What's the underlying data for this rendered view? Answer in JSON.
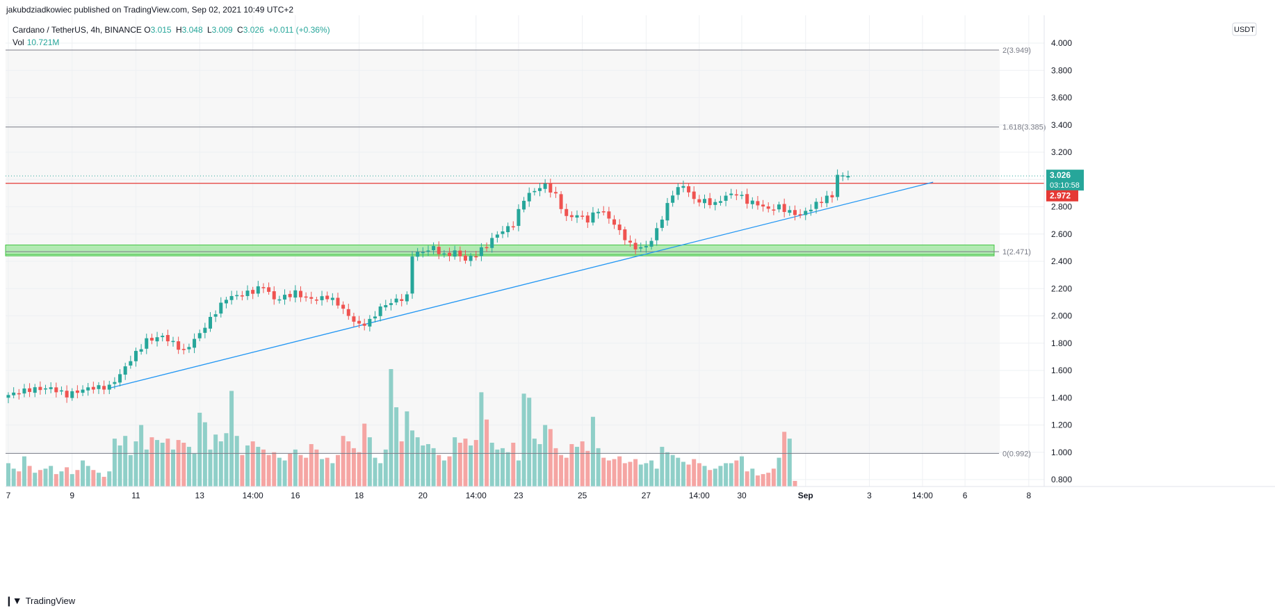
{
  "header": {
    "published": "jakubdziadkowiec published on TradingView.com, Sep 02, 2021 10:49 UTC+2"
  },
  "legend": {
    "symbol": "Cardano / TetherUS, 4h, BINANCE",
    "o_label": "O",
    "o_value": "3.015",
    "h_label": "H",
    "h_value": "3.048",
    "l_label": "L",
    "l_value": "3.009",
    "c_label": "C",
    "c_value": "3.026",
    "change": "+0.011 (+0.36%)",
    "vol_label": "Vol",
    "vol_value": "10.721M"
  },
  "currency_button": "USDT",
  "price_badge": {
    "price": "3.026",
    "timer": "03:10:58"
  },
  "line_badge": {
    "price": "2.972"
  },
  "footer": {
    "brand": "TradingView"
  },
  "colors": {
    "up": "#26a69a",
    "down": "#ef5350",
    "up_vol": "#8fcfc8",
    "down_vol": "#f5a5a3",
    "trendline": "#2196f3",
    "resistance": "#e53935",
    "zone_fill": "#9be69b",
    "zone_border": "#43c443"
  },
  "chart_data": {
    "type": "candlestick",
    "title": "Cardano / TetherUS, 4h, BINANCE",
    "ylim": [
      0.72,
      4.08
    ],
    "y_ticks": [
      "4.000",
      "3.800",
      "3.600",
      "3.400",
      "3.200",
      "3.000",
      "2.800",
      "2.600",
      "2.400",
      "2.200",
      "2.000",
      "1.800",
      "1.600",
      "1.400",
      "1.200",
      "1.000",
      "0.800"
    ],
    "y_tick_values": [
      4.0,
      3.8,
      3.6,
      3.4,
      3.2,
      3.0,
      2.8,
      2.6,
      2.4,
      2.2,
      2.0,
      1.8,
      1.6,
      1.4,
      1.2,
      1.0,
      0.8
    ],
    "x_ticks": [
      "7",
      "9",
      "11",
      "13",
      "14:00",
      "16",
      "18",
      "20",
      "14:00",
      "23",
      "25",
      "27",
      "14:00",
      "30",
      "Sep",
      "3",
      "14:00",
      "6",
      "8"
    ],
    "x_tick_bars": [
      0,
      12,
      24,
      36,
      46,
      54,
      66,
      78,
      88,
      96,
      108,
      120,
      130,
      138,
      150,
      162,
      172,
      180,
      192
    ],
    "fib_levels": [
      {
        "label": "2(3.949)",
        "value": 3.949
      },
      {
        "label": "1.618(3.385)",
        "value": 3.385
      },
      {
        "label": "1(2.471)",
        "value": 2.471
      },
      {
        "label": "0(0.992)",
        "value": 0.992
      }
    ],
    "support_zone": {
      "low": 2.44,
      "high": 2.52
    },
    "resistance_line": 2.972,
    "trendline": {
      "start_bar": 19,
      "start_value": 1.47,
      "end_bar": 174,
      "end_value": 2.98
    },
    "last_price": 3.026,
    "close_anchors": [
      [
        0,
        1.42
      ],
      [
        4,
        1.46
      ],
      [
        8,
        1.47
      ],
      [
        11,
        1.42
      ],
      [
        15,
        1.47
      ],
      [
        19,
        1.48
      ],
      [
        21,
        1.57
      ],
      [
        23,
        1.68
      ],
      [
        26,
        1.82
      ],
      [
        29,
        1.85
      ],
      [
        31,
        1.8
      ],
      [
        33,
        1.74
      ],
      [
        36,
        1.87
      ],
      [
        39,
        2.03
      ],
      [
        41,
        2.13
      ],
      [
        44,
        2.16
      ],
      [
        46,
        2.18
      ],
      [
        48,
        2.22
      ],
      [
        50,
        2.12
      ],
      [
        52,
        2.14
      ],
      [
        54,
        2.17
      ],
      [
        56,
        2.13
      ],
      [
        58,
        2.12
      ],
      [
        60,
        2.14
      ],
      [
        62,
        2.09
      ],
      [
        64,
        2.0
      ],
      [
        66,
        1.93
      ],
      [
        68,
        1.96
      ],
      [
        70,
        2.06
      ],
      [
        72,
        2.1
      ],
      [
        75,
        2.14
      ],
      [
        76,
        2.45
      ],
      [
        78,
        2.47
      ],
      [
        80,
        2.5
      ],
      [
        82,
        2.44
      ],
      [
        84,
        2.47
      ],
      [
        86,
        2.41
      ],
      [
        88,
        2.45
      ],
      [
        90,
        2.52
      ],
      [
        92,
        2.6
      ],
      [
        95,
        2.67
      ],
      [
        97,
        2.86
      ],
      [
        99,
        2.92
      ],
      [
        101,
        2.96
      ],
      [
        103,
        2.88
      ],
      [
        105,
        2.72
      ],
      [
        107,
        2.74
      ],
      [
        109,
        2.7
      ],
      [
        111,
        2.78
      ],
      [
        113,
        2.72
      ],
      [
        115,
        2.62
      ],
      [
        117,
        2.52
      ],
      [
        119,
        2.49
      ],
      [
        121,
        2.55
      ],
      [
        123,
        2.72
      ],
      [
        125,
        2.9
      ],
      [
        127,
        2.96
      ],
      [
        129,
        2.85
      ],
      [
        131,
        2.84
      ],
      [
        133,
        2.82
      ],
      [
        135,
        2.88
      ],
      [
        137,
        2.9
      ],
      [
        139,
        2.84
      ],
      [
        141,
        2.82
      ],
      [
        143,
        2.78
      ],
      [
        145,
        2.8
      ],
      [
        147,
        2.76
      ],
      [
        149,
        2.74
      ],
      [
        151,
        2.79
      ],
      [
        153,
        2.85
      ],
      [
        155,
        2.88
      ],
      [
        156,
        3.03
      ],
      [
        157,
        3.02
      ],
      [
        158,
        3.026
      ]
    ],
    "volume": {
      "axis_min": 0.78,
      "axis_max": 1.6,
      "values": [
        0.92,
        0.88,
        0.86,
        0.97,
        0.9,
        0.85,
        0.87,
        0.88,
        0.9,
        0.84,
        0.86,
        0.89,
        0.84,
        0.87,
        0.94,
        0.9,
        0.87,
        0.85,
        0.82,
        0.86,
        1.1,
        1.05,
        1.12,
        0.98,
        1.08,
        1.2,
        1.02,
        1.11,
        1.09,
        1.07,
        1.1,
        1.02,
        1.09,
        1.07,
        1.04,
        0.99,
        1.29,
        1.22,
        1.02,
        1.13,
        1.08,
        1.14,
        1.45,
        1.12,
        0.98,
        1.05,
        1.08,
        1.04,
        1.02,
        0.98,
        1.0,
        0.96,
        0.94,
        0.99,
        1.02,
        0.98,
        0.96,
        1.06,
        1.02,
        0.95,
        0.96,
        0.92,
        0.98,
        1.12,
        1.08,
        1.03,
        1.0,
        1.21,
        1.11,
        0.96,
        0.92,
        1.02,
        1.61,
        1.33,
        1.08,
        1.3,
        1.16,
        1.11,
        1.05,
        1.06,
        1.03,
        0.98,
        0.94,
        0.97,
        1.11,
        1.07,
        1.1,
        1.05,
        1.09,
        1.44,
        1.24,
        1.07,
        1.02,
        1.03,
        1.0,
        1.07,
        0.94,
        1.43,
        1.4,
        1.1,
        1.06,
        1.2,
        1.17,
        1.03,
        0.98,
        0.96,
        1.06,
        1.04,
        1.08,
        1.01,
        1.26,
        1.03,
        0.96,
        0.94,
        0.95,
        0.97,
        0.92,
        0.93,
        0.95,
        0.91,
        0.92,
        0.94,
        0.88,
        1.04,
        1.0,
        0.98,
        0.96,
        0.93,
        0.91,
        0.95,
        0.92,
        0.9,
        0.87,
        0.88,
        0.9,
        0.92,
        0.92,
        0.94,
        0.97,
        0.86,
        0.88,
        0.83,
        0.84,
        0.85,
        0.88,
        0.96,
        1.15,
        1.1,
        0.79
      ]
    }
  }
}
